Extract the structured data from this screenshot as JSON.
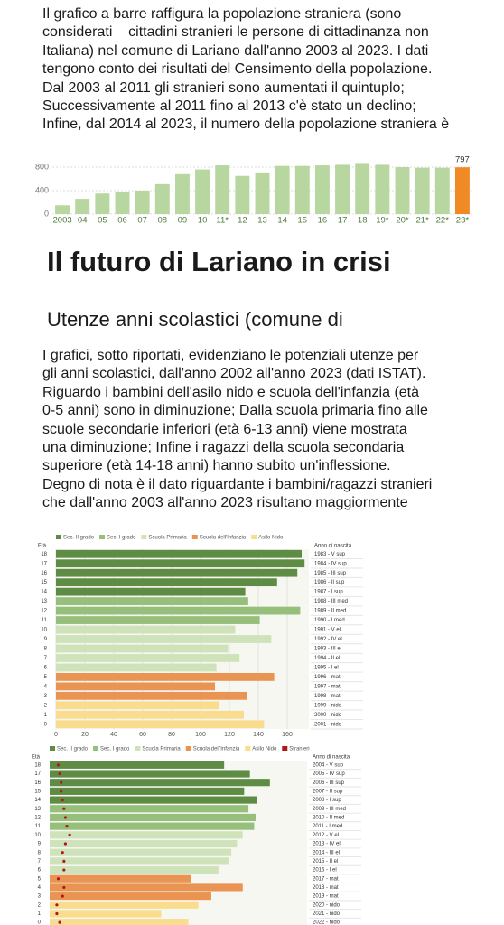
{
  "article": {
    "intro_lines": [
      "Il grafico a barre raffigura la popolazione straniera (sono",
      "considerati    cittadini stranieri le persone di cittadinanza non",
      "Italiana) nel comune di Lariano dall'anno 2003 al 2023. I dati",
      "tengono conto dei risultati del Censimento della popolazione.",
      "Dal 2003 al 2011 gli stranieri sono aumentati il quintuplo;",
      "Successivamente al 2011 fino al 2013 c'è stato un declino;",
      "Infine, dal 2014 al 2023, il numero della popolazione straniera è"
    ],
    "heading": "Il futuro di Lariano in crisi",
    "subheading": "Utenze anni scolastici (comune di",
    "body_lines": [
      "I grafici, sotto riportati, evidenziano le potenziali utenze per",
      "gli anni scolastici, dall'anno 2002 all'anno 2023 (dati ISTAT).",
      "Riguardo i bambini dell'asilo nido e scuola dell'infanzia (età",
      "0-5 anni) sono in diminuzione; Dalla scuola primaria fino alle",
      "scuole secondarie inferiori (età 6-13 anni) viene mostrata",
      "una diminuzione; Infine i ragazzi della scuola secondaria",
      "superiore (età 14-18 anni) hanno subito un'inflessione.",
      "Degno di nota è il dato riguardante i bambini/ragazzi stranieri",
      "che dall'anno 2003 all'anno 2023 risultano maggiormente"
    ]
  },
  "chart_data": [
    {
      "type": "bar",
      "categories": [
        "2003",
        "04",
        "05",
        "06",
        "07",
        "08",
        "09",
        "10",
        "11*",
        "12",
        "13",
        "14",
        "15",
        "16",
        "17",
        "18",
        "19*",
        "20*",
        "21*",
        "22*",
        "23*"
      ],
      "values": [
        150,
        260,
        350,
        380,
        400,
        510,
        680,
        760,
        830,
        650,
        710,
        820,
        820,
        830,
        840,
        870,
        840,
        800,
        790,
        790,
        797
      ],
      "value_labels": [
        null,
        null,
        null,
        null,
        null,
        null,
        null,
        null,
        null,
        null,
        null,
        null,
        null,
        null,
        null,
        null,
        null,
        null,
        null,
        null,
        "797"
      ],
      "colors": [
        "#b8d6a0",
        "#b8d6a0",
        "#b8d6a0",
        "#b8d6a0",
        "#b8d6a0",
        "#b8d6a0",
        "#b8d6a0",
        "#b8d6a0",
        "#b8d6a0",
        "#b8d6a0",
        "#b8d6a0",
        "#b8d6a0",
        "#b8d6a0",
        "#b8d6a0",
        "#b8d6a0",
        "#b8d6a0",
        "#b8d6a0",
        "#b8d6a0",
        "#b8d6a0",
        "#b8d6a0",
        "#f08a24"
      ],
      "ylim": [
        0,
        1000
      ],
      "yticks": [
        0,
        400,
        800
      ],
      "grid": true
    },
    {
      "type": "hbar",
      "category_label": "Età",
      "secondary_label": "Anno di nascita",
      "categories": [
        "18",
        "17",
        "16",
        "15",
        "14",
        "13",
        "12",
        "11",
        "10",
        "9",
        "8",
        "7",
        "6",
        "5",
        "4",
        "3",
        "2",
        "1",
        "0"
      ],
      "secondary_categories": [
        "1983 - V sup",
        "1984 - IV sup",
        "1985 - III sup",
        "1986 - II sup",
        "1987 - I sup",
        "1988 - III med",
        "1989 - II med",
        "1990 - I med",
        "1991 - V el",
        "1992 - IV el",
        "1993 - III el",
        "1994 - II el",
        "1995 - I el",
        "1996 - mat",
        "1997 - mat",
        "1998 - mat",
        "1999 - nido",
        "2000 - nido",
        "2001 - nido"
      ],
      "series": [
        {
          "name": "Sec. II grado",
          "color": "#5e8c45",
          "values": [
            170,
            172,
            167,
            153,
            131,
            null,
            null,
            null,
            null,
            null,
            null,
            null,
            null,
            null,
            null,
            null,
            null,
            null,
            null
          ]
        },
        {
          "name": "Sec. I grado",
          "color": "#95bf7a",
          "values": [
            null,
            null,
            null,
            null,
            null,
            133,
            169,
            141,
            null,
            null,
            null,
            null,
            null,
            null,
            null,
            null,
            null,
            null,
            null
          ]
        },
        {
          "name": "Scuola Primaria",
          "color": "#cfe3ba",
          "values": [
            null,
            null,
            null,
            null,
            null,
            null,
            null,
            null,
            124,
            149,
            119,
            127,
            111,
            null,
            null,
            null,
            null,
            null,
            null
          ]
        },
        {
          "name": "Scuola dell'Infanzia",
          "color": "#e99452",
          "values": [
            null,
            null,
            null,
            null,
            null,
            null,
            null,
            null,
            null,
            null,
            null,
            null,
            null,
            151,
            110,
            132,
            null,
            null,
            null
          ]
        },
        {
          "name": "Asilo Nido",
          "color": "#f9dc8e",
          "values": [
            null,
            null,
            null,
            null,
            null,
            null,
            null,
            null,
            null,
            null,
            null,
            null,
            null,
            null,
            null,
            null,
            113,
            130,
            144
          ]
        }
      ],
      "xlim": [
        0,
        175
      ],
      "xticks": [
        0,
        20,
        40,
        60,
        80,
        100,
        120,
        140,
        160
      ],
      "grid": true
    },
    {
      "type": "hbar",
      "category_label": "Età",
      "secondary_label": "Anno di nascita",
      "categories": [
        "18",
        "17",
        "16",
        "15",
        "14",
        "13",
        "12",
        "11",
        "10",
        "9",
        "8",
        "7",
        "6",
        "5",
        "4",
        "3",
        "2",
        "1",
        "0"
      ],
      "secondary_categories": [
        "2004 - V sup",
        "2005 - IV sup",
        "2006 - III sup",
        "2007 - II sup",
        "2008 - I sup",
        "2009 - III med",
        "2010 - II med",
        "2011 - I med",
        "2012 - V el",
        "2013 - IV el",
        "2014 - III el",
        "2015 - II el",
        "2016 - I el",
        "2017 - mat",
        "2018 - mat",
        "2019 - mat",
        "2020 - nido",
        "2021 - nido",
        "2022 - nido"
      ],
      "series": [
        {
          "name": "Sec. II grado",
          "color": "#5e8c45",
          "values": [
            122,
            140,
            154,
            136,
            145,
            null,
            null,
            null,
            null,
            null,
            null,
            null,
            null,
            null,
            null,
            null,
            null,
            null,
            null
          ]
        },
        {
          "name": "Sec. I grado",
          "color": "#95bf7a",
          "values": [
            null,
            null,
            null,
            null,
            null,
            139,
            144,
            143,
            null,
            null,
            null,
            null,
            null,
            null,
            null,
            null,
            null,
            null,
            null
          ]
        },
        {
          "name": "Scuola Primaria",
          "color": "#cfe3ba",
          "values": [
            null,
            null,
            null,
            null,
            null,
            null,
            null,
            null,
            135,
            131,
            127,
            125,
            118,
            null,
            null,
            null,
            null,
            null,
            null
          ]
        },
        {
          "name": "Scuola dell'Infanzia",
          "color": "#e99452",
          "values": [
            null,
            null,
            null,
            null,
            null,
            null,
            null,
            null,
            null,
            null,
            null,
            null,
            null,
            99,
            135,
            113,
            null,
            null,
            null
          ]
        },
        {
          "name": "Asilo Nido",
          "color": "#f9dc8e",
          "values": [
            null,
            null,
            null,
            null,
            null,
            null,
            null,
            null,
            null,
            null,
            null,
            null,
            null,
            null,
            null,
            null,
            104,
            78,
            97
          ]
        },
        {
          "name": "Stranieri",
          "color": "#b01818",
          "marker": "dot",
          "values": [
            6,
            7,
            8,
            8,
            9,
            10,
            11,
            12,
            14,
            11,
            9,
            10,
            10,
            6,
            10,
            9,
            5,
            5,
            7
          ]
        }
      ],
      "xlim": [
        0,
        180
      ],
      "grid": true
    }
  ]
}
